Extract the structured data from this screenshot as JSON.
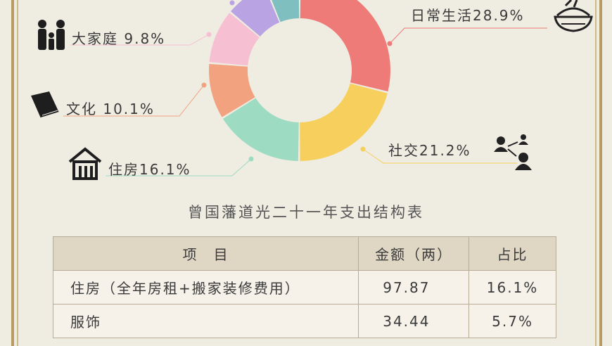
{
  "chart_data": {
    "type": "pie",
    "variant": "donut",
    "slices": [
      {
        "label": "日常生活",
        "value": 28.9,
        "display": "日常生活28.9%",
        "color": "#ee7b77"
      },
      {
        "label": "社交",
        "value": 21.2,
        "display": "社交21.2%",
        "color": "#f7cf5d"
      },
      {
        "label": "住房",
        "value": 16.1,
        "display": "住房16.1%",
        "color": "#9ddcc2"
      },
      {
        "label": "文化",
        "value": 10.1,
        "display": "文化 10.1%",
        "color": "#f2a27f"
      },
      {
        "label": "大家庭",
        "value": 9.8,
        "display": "大家庭 9.8%",
        "color": "#f6c0d2"
      },
      {
        "label": "",
        "value": 7.7,
        "display": "",
        "color": "#b9a3e3"
      },
      {
        "label": "",
        "value": 6.2,
        "display": "",
        "color": "#7fbfc0"
      }
    ]
  },
  "table": {
    "title": "曾国藩道光二十一年支出结构表",
    "headers": [
      "项　目",
      "金额（两）",
      "占比"
    ],
    "rows": [
      {
        "item": "住房（全年房租+搬家装修费用）",
        "amount": "97.87",
        "share": "16.1%"
      },
      {
        "item": "服饰",
        "amount": "34.44",
        "share": "5.7%"
      }
    ]
  },
  "icons": {
    "daily": "rice-bowl-icon",
    "social": "people-network-icon",
    "housing": "house-icon",
    "culture": "books-icon",
    "family": "family-icon"
  }
}
